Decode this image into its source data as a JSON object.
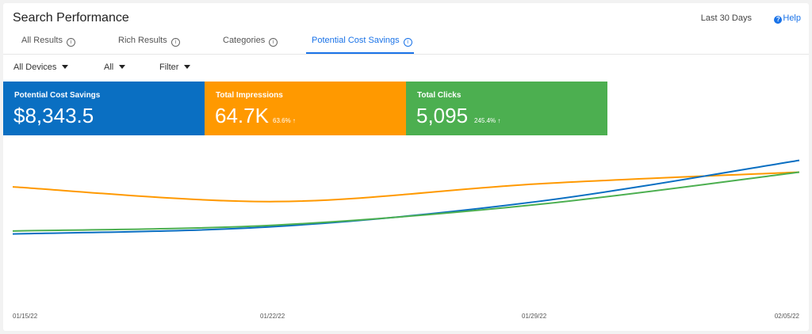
{
  "header": {
    "title": "Search Performance",
    "date_range": "Last 30 Days",
    "help": "Help"
  },
  "tabs": [
    {
      "label": "All Results",
      "active": false
    },
    {
      "label": "Rich Results",
      "active": false
    },
    {
      "label": "Categories",
      "active": false
    },
    {
      "label": "Potential Cost Savings",
      "active": true
    }
  ],
  "filters": {
    "devices": "All Devices",
    "all": "All",
    "filter": "Filter"
  },
  "kpis": {
    "cost_savings": {
      "label": "Potential Cost Savings",
      "value": "$8,343.5",
      "color": "#0a6fc2"
    },
    "impressions": {
      "label": "Total Impressions",
      "value": "64.7K",
      "delta": "63.6% ↑",
      "color": "#ff9900"
    },
    "clicks": {
      "label": "Total Clicks",
      "value": "5,095",
      "delta": "245.4% ↑",
      "color": "#4caf50"
    }
  },
  "chart_data": {
    "type": "line",
    "x": [
      "01/15/22",
      "01/22/22",
      "01/29/22",
      "02/05/22"
    ],
    "series": [
      {
        "color": "#ff9900",
        "values": [
          0.72,
          0.62,
          0.74,
          0.82
        ]
      },
      {
        "color": "#0a6fc2",
        "values": [
          0.4,
          0.45,
          0.62,
          0.9
        ]
      },
      {
        "color": "#4caf50",
        "values": [
          0.42,
          0.46,
          0.6,
          0.82
        ]
      }
    ],
    "ylim": [
      0,
      1
    ],
    "grid": false,
    "legend": "none"
  }
}
